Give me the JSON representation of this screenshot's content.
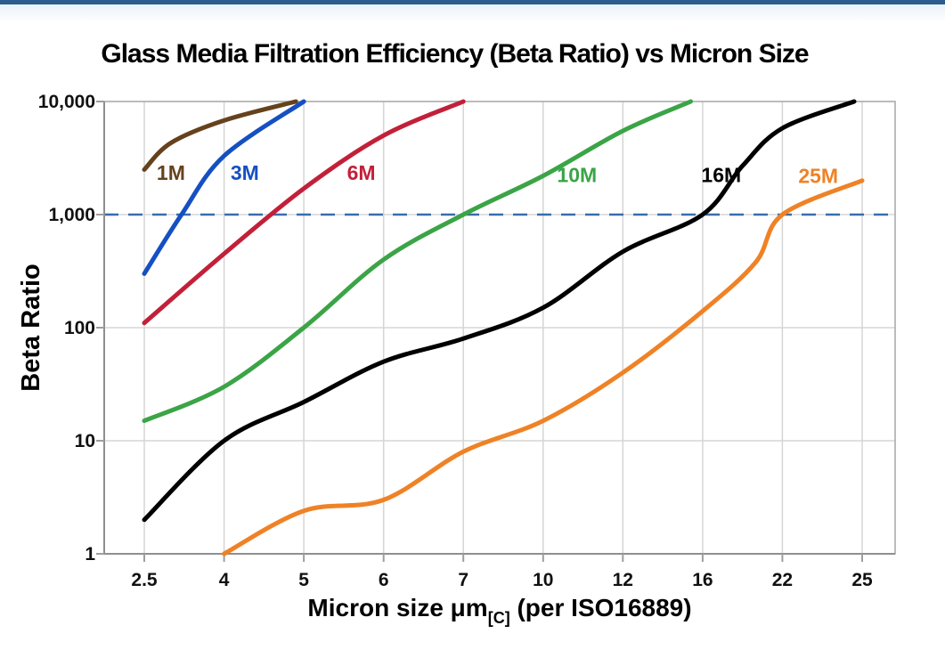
{
  "page": {
    "top_bar_color": "#2c5c8d",
    "top_fade_color": "#e9f1f8"
  },
  "chart_data": {
    "type": "line",
    "title": "Glass Media Filtration Efficiency (Beta Ratio) vs Micron Size",
    "ylabel": "Beta Ratio",
    "xlabel_main": "Micron size μm",
    "xlabel_sub": "[C]",
    "xlabel_tail": " (per ISO16889)",
    "x_scale": "categorical",
    "y_scale": "log",
    "ylim": [
      1,
      10000
    ],
    "grid": true,
    "categories": [
      2.5,
      4,
      5,
      6,
      7,
      10,
      12,
      16,
      22,
      25
    ],
    "x_tick_labels": [
      "2.5",
      "4",
      "5",
      "6",
      "7",
      "10",
      "12",
      "16",
      "22",
      "25"
    ],
    "y_ticks": [
      1,
      10,
      100,
      1000,
      10000
    ],
    "y_tick_labels": [
      "1",
      "10",
      "100",
      "1,000",
      "10,000"
    ],
    "reference_line": {
      "value": 1000,
      "color": "#3a6cad",
      "style": "dashed"
    },
    "colors": {
      "grid": "#d5d5d5",
      "border": "#a6a6a6",
      "axis": "#8f8f8f",
      "tick": "#9e9e9e",
      "tick_label": "#111111"
    },
    "series": [
      {
        "name": "1M",
        "color": "#65421d",
        "label_pos": {
          "micron": 3.0,
          "beta": 2350
        },
        "points": [
          [
            2.5,
            2500
          ],
          [
            3,
            4300
          ],
          [
            4,
            6800
          ],
          [
            4.9,
            10000
          ]
        ]
      },
      {
        "name": "3M",
        "color": "#1550c2",
        "label_pos": {
          "micron": 4.26,
          "beta": 2350
        },
        "points": [
          [
            2.5,
            300
          ],
          [
            3.2,
            1000
          ],
          [
            4,
            3300
          ],
          [
            5,
            10000
          ]
        ]
      },
      {
        "name": "6M",
        "color": "#c22039",
        "label_pos": {
          "micron": 5.72,
          "beta": 2350
        },
        "points": [
          [
            2.5,
            110
          ],
          [
            4,
            450
          ],
          [
            5,
            1700
          ],
          [
            6,
            5000
          ],
          [
            7,
            10000
          ]
        ]
      },
      {
        "name": "10M",
        "color": "#3ba447",
        "label_pos": {
          "micron": 10.85,
          "beta": 2250
        },
        "points": [
          [
            2.5,
            15
          ],
          [
            4,
            30
          ],
          [
            5,
            100
          ],
          [
            6,
            400
          ],
          [
            7,
            1000
          ],
          [
            10,
            2200
          ],
          [
            12,
            5500
          ],
          [
            15.4,
            10000
          ]
        ]
      },
      {
        "name": "16M",
        "color": "#000000",
        "label_pos": {
          "micron": 17.4,
          "beta": 2250
        },
        "points": [
          [
            2.5,
            2
          ],
          [
            4,
            10
          ],
          [
            5,
            22
          ],
          [
            6,
            50
          ],
          [
            7,
            80
          ],
          [
            10,
            150
          ],
          [
            12,
            470
          ],
          [
            16,
            1000
          ],
          [
            19,
            2700
          ],
          [
            22,
            5800
          ],
          [
            24.7,
            10000
          ]
        ]
      },
      {
        "name": "25M",
        "color": "#ef8226",
        "label_pos": {
          "micron": 23.35,
          "beta": 2200
        },
        "points": [
          [
            4,
            1
          ],
          [
            5,
            2.4
          ],
          [
            6,
            3
          ],
          [
            7,
            8
          ],
          [
            10,
            15
          ],
          [
            12,
            40
          ],
          [
            16,
            140
          ],
          [
            20,
            380
          ],
          [
            22,
            1000
          ],
          [
            25,
            2000
          ]
        ]
      }
    ]
  }
}
